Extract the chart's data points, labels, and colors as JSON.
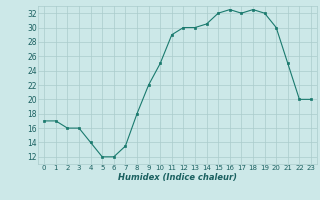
{
  "x": [
    0,
    1,
    2,
    3,
    4,
    5,
    6,
    7,
    8,
    9,
    10,
    11,
    12,
    13,
    14,
    15,
    16,
    17,
    18,
    19,
    20,
    21,
    22,
    23
  ],
  "y": [
    17,
    17,
    16,
    16,
    14,
    12,
    12,
    13.5,
    18,
    22,
    25,
    29,
    30,
    30,
    30.5,
    32,
    32.5,
    32,
    32.5,
    32,
    30,
    25,
    20,
    20
  ],
  "xlabel": "Humidex (Indice chaleur)",
  "xlim": [
    -0.5,
    23.5
  ],
  "ylim": [
    11,
    33
  ],
  "yticks": [
    12,
    14,
    16,
    18,
    20,
    22,
    24,
    26,
    28,
    30,
    32
  ],
  "xticks": [
    0,
    1,
    2,
    3,
    4,
    5,
    6,
    7,
    8,
    9,
    10,
    11,
    12,
    13,
    14,
    15,
    16,
    17,
    18,
    19,
    20,
    21,
    22,
    23
  ],
  "line_color": "#1a7a6e",
  "marker_color": "#1a7a6e",
  "bg_color": "#cce8e8",
  "grid_color": "#aacccc",
  "label_color": "#1a6060"
}
